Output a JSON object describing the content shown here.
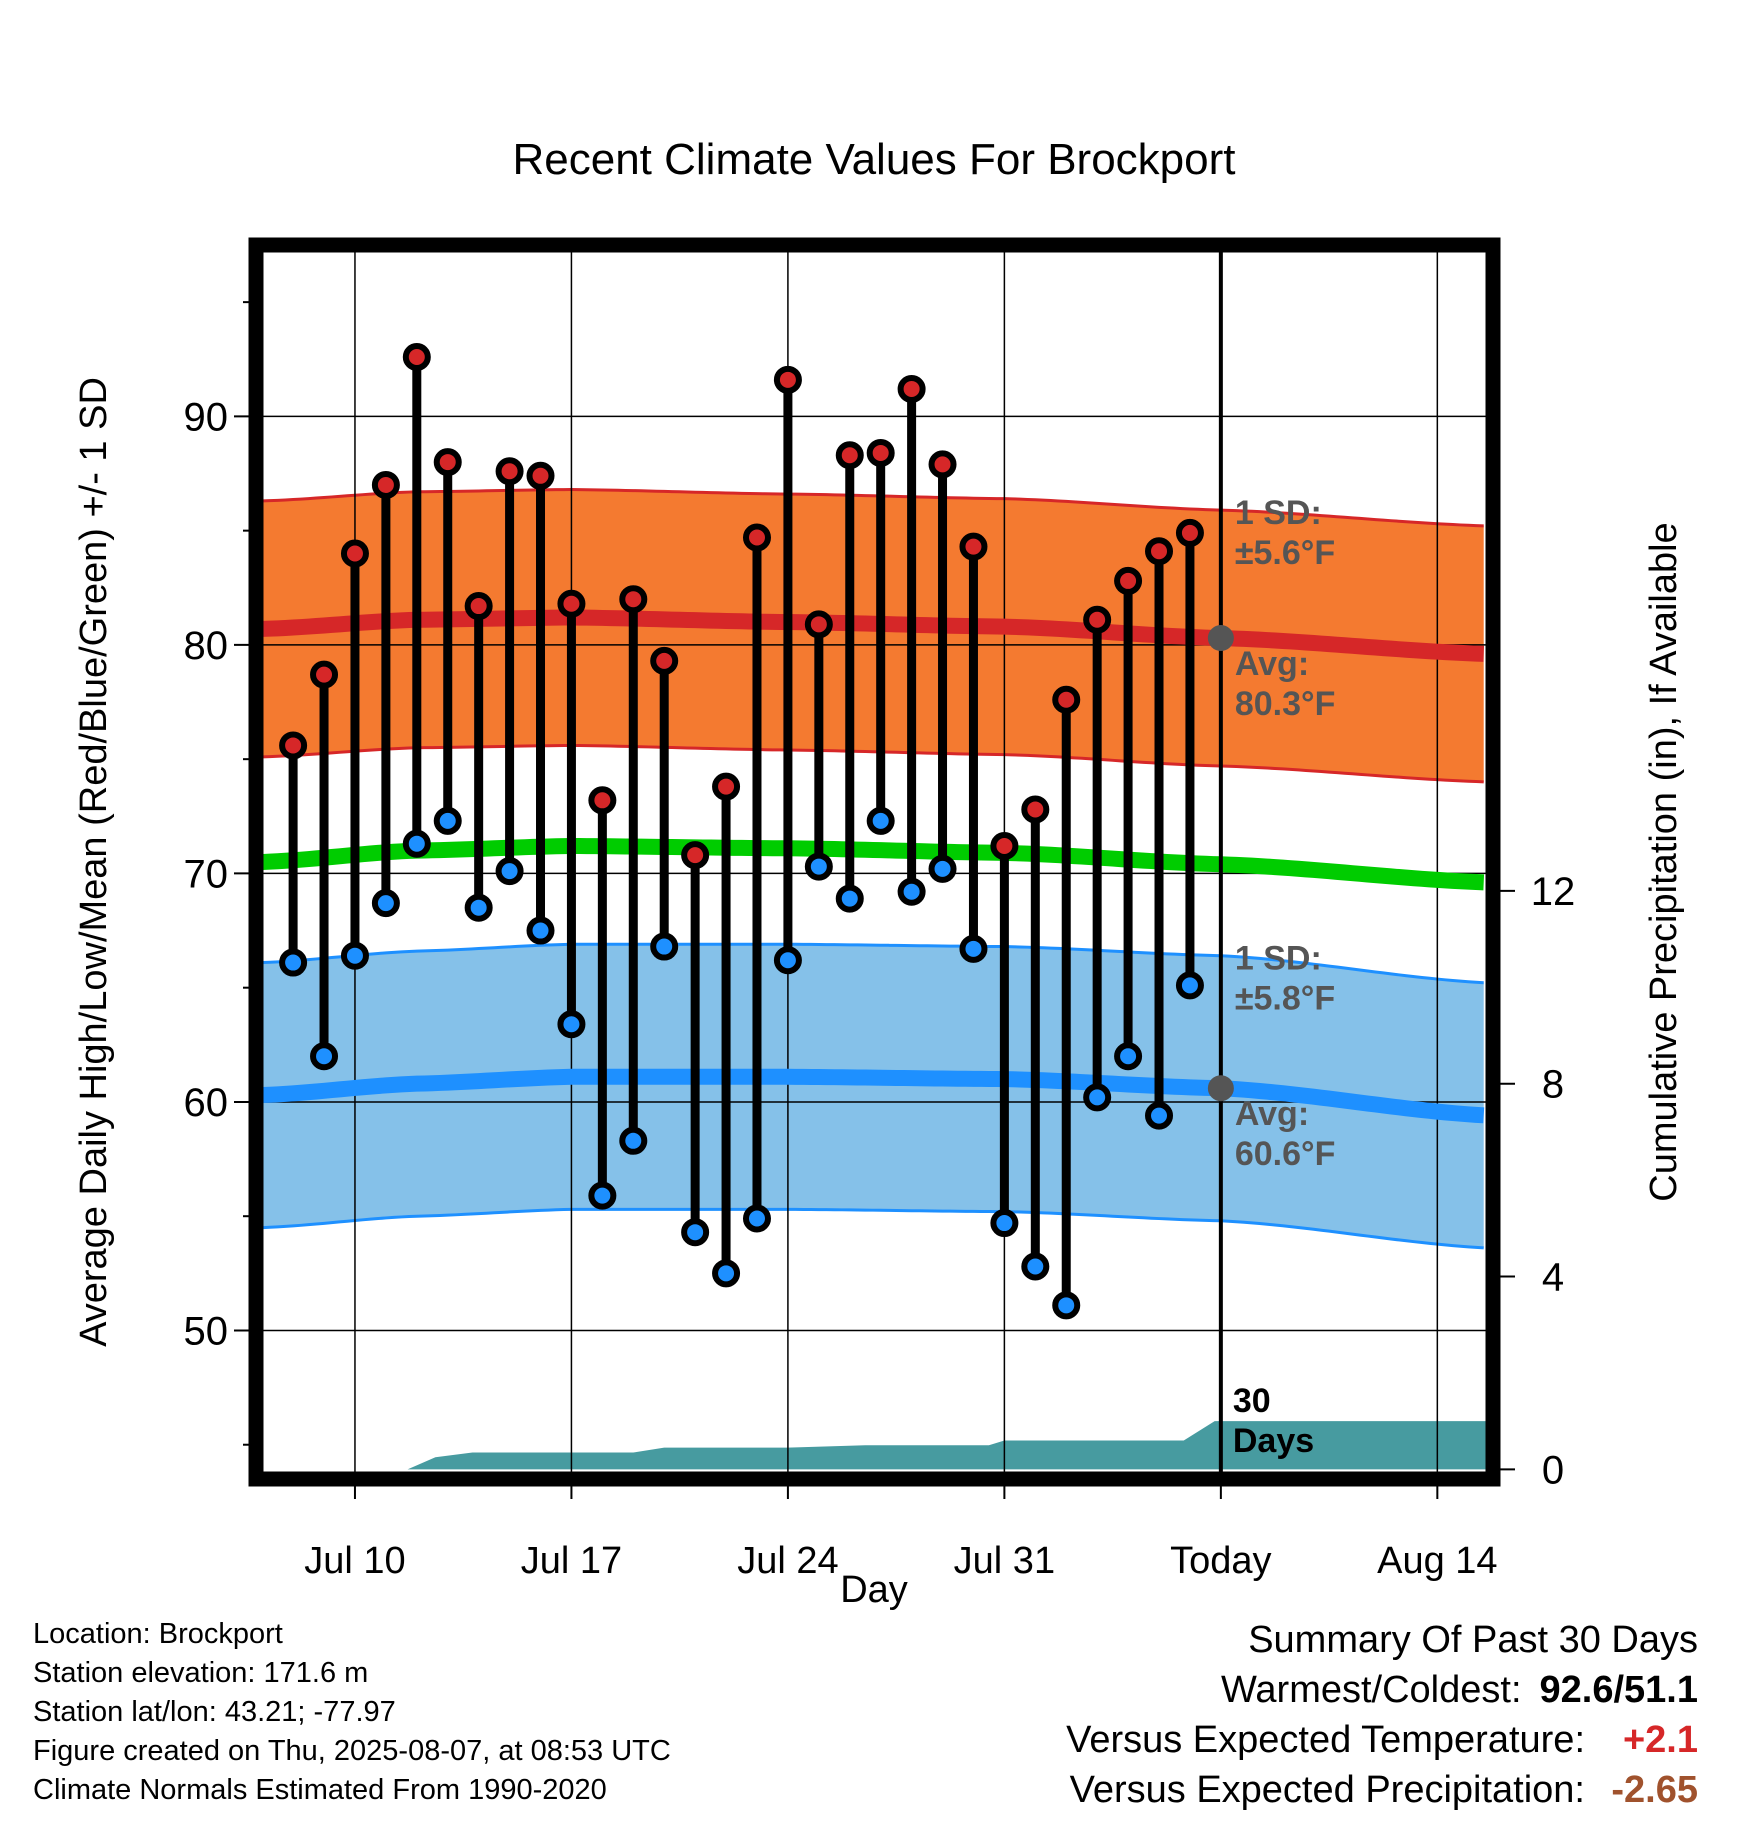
{
  "chart_data": {
    "type": "line",
    "title": "Recent Climate Values For Brockport",
    "xlabel": "Day",
    "ylabel_left": "Average Daily High/Low/Mean (Red/Blue/Green) +/- 1 SD",
    "ylabel_right": "Cumulative Precipitation (in), If Available",
    "x_ticks": [
      {
        "day": 10,
        "label": "Jul 10"
      },
      {
        "day": 17,
        "label": "Jul 17"
      },
      {
        "day": 24,
        "label": "Jul 24"
      },
      {
        "day": 31,
        "label": "Jul 31"
      },
      {
        "day": 38,
        "label": "Today"
      },
      {
        "day": 45,
        "label": "Aug 14"
      }
    ],
    "x_range": [
      6.8,
      46.8
    ],
    "y_left_ticks": [
      50,
      60,
      70,
      80,
      90
    ],
    "y_left_range": [
      43.5,
      97.5
    ],
    "y_right_ticks": [
      0,
      4,
      8,
      12
    ],
    "y_right_range": [
      -0.2,
      25.4
    ],
    "today_day": 38,
    "normal_high": {
      "x": [
        7,
        12,
        17,
        24,
        31,
        38,
        46.7
      ],
      "avg": [
        80.7,
        81.1,
        81.2,
        81.0,
        80.8,
        80.3,
        79.6
      ],
      "sd": 5.6
    },
    "normal_mean": {
      "x": [
        7,
        12,
        17,
        24,
        31,
        38,
        46.7
      ],
      "avg": [
        70.5,
        71.0,
        71.2,
        71.1,
        70.9,
        70.4,
        69.6
      ]
    },
    "normal_low": {
      "x": [
        7,
        12,
        17,
        24,
        31,
        38,
        46.7
      ],
      "avg": [
        60.3,
        60.8,
        61.1,
        61.1,
        61.0,
        60.6,
        59.4
      ],
      "sd": 5.8
    },
    "daily": {
      "x": [
        8,
        9,
        10,
        11,
        12,
        13,
        14,
        15,
        16,
        17,
        18,
        19,
        20,
        21,
        22,
        23,
        24,
        25,
        26,
        27,
        28,
        29,
        30,
        31,
        32,
        33,
        34,
        35,
        36,
        37
      ],
      "high": [
        75.6,
        78.7,
        84.0,
        87.0,
        92.6,
        88.0,
        81.7,
        87.6,
        87.4,
        81.8,
        73.2,
        82.0,
        79.3,
        70.8,
        73.8,
        84.7,
        91.6,
        80.9,
        88.3,
        88.4,
        91.2,
        87.9,
        84.3,
        71.2,
        72.8,
        77.6,
        81.1,
        82.8,
        84.1,
        84.9
      ],
      "low": [
        66.1,
        62.0,
        66.4,
        68.7,
        71.3,
        72.3,
        68.5,
        70.1,
        67.5,
        63.4,
        55.9,
        58.3,
        66.8,
        54.3,
        52.5,
        54.9,
        66.2,
        70.3,
        68.9,
        72.3,
        69.2,
        70.2,
        66.7,
        54.7,
        52.8,
        51.1,
        60.2,
        62.0,
        59.4,
        65.1
      ]
    },
    "precip": {
      "x": [
        7,
        8,
        9,
        10,
        11.7,
        12.6,
        13.8,
        19,
        20,
        24,
        26.5,
        30.5,
        31,
        35,
        36.8,
        37.8,
        38,
        46.8
      ],
      "cumulative": [
        0,
        0,
        0,
        0,
        0,
        0.25,
        0.35,
        0.35,
        0.45,
        0.45,
        0.5,
        0.5,
        0.6,
        0.6,
        0.6,
        1.0,
        1.0,
        1.0
      ]
    },
    "annotations": {
      "high_sd_label": "1 SD:",
      "high_sd_value": "±5.6°F",
      "high_avg_label": "Avg:",
      "high_avg_value": "80.3°F",
      "low_sd_label": "1 SD:",
      "low_sd_value": "±5.8°F",
      "low_avg_label": "Avg:",
      "low_avg_value": "60.6°F",
      "days_label_1": "30",
      "days_label_2": "Days"
    },
    "colors": {
      "high_band": "#F47A30",
      "high_line": "#D62728",
      "low_band": "#85C1E9",
      "low_line": "#1E90FF",
      "mean_line": "#00CC00",
      "precip_fill": "#479BA0",
      "high_dot": "#D62728",
      "low_dot": "#1E90FF",
      "today_marker": "#555555"
    },
    "grid": true
  },
  "footer": {
    "location": "Location: Brockport",
    "elevation": "Station elevation: 171.6 m",
    "latlon": "Station lat/lon: 43.21; -77.97",
    "created": "Figure created on Thu, 2025-08-07, at 08:53 UTC",
    "normals": "Climate Normals Estimated From 1990-2020"
  },
  "summary": {
    "title": "Summary Of Past 30 Days",
    "warmest_label": "Warmest/Coldest:",
    "warmest_value": "92.6/51.1",
    "temp_label": "Versus Expected Temperature:",
    "temp_value": "+2.1",
    "temp_color": "#D62728",
    "precip_label": "Versus Expected Precipitation:",
    "precip_value": "-2.65",
    "precip_color": "#A0522D"
  }
}
